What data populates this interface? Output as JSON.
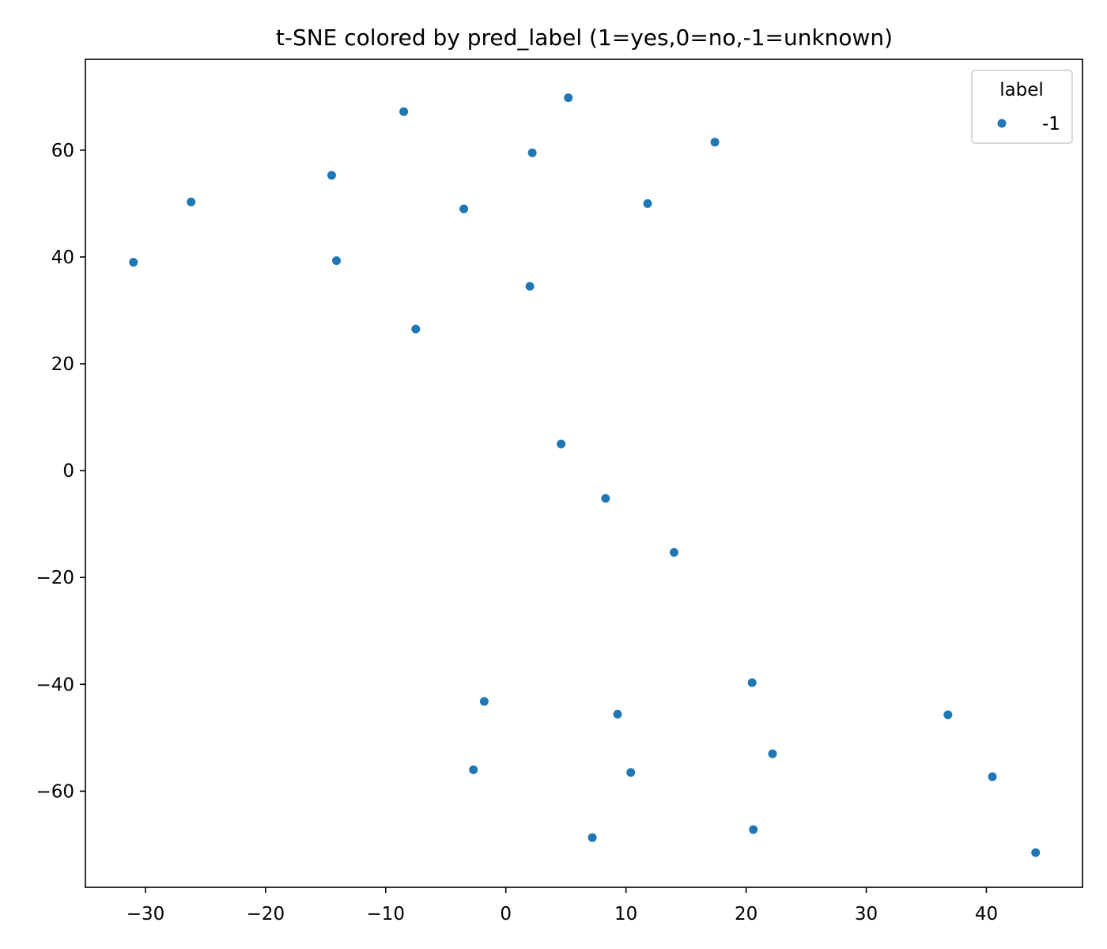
{
  "chart_data": {
    "type": "scatter",
    "title": "t-SNE colored by pred_label (1=yes,0=no,-1=unknown)",
    "xlabel": "",
    "ylabel": "",
    "xlim": [
      -35,
      48
    ],
    "ylim": [
      -78,
      77
    ],
    "x_ticks": [
      -30,
      -20,
      -10,
      0,
      10,
      20,
      30,
      40
    ],
    "x_tick_labels": [
      "−30",
      "−20",
      "−10",
      "0",
      "10",
      "20",
      "30",
      "40"
    ],
    "y_ticks": [
      -60,
      -40,
      -20,
      0,
      20,
      40,
      60
    ],
    "y_tick_labels": [
      "−60",
      "−40",
      "−20",
      "0",
      "20",
      "40",
      "60"
    ],
    "grid": false,
    "legend": {
      "title": "label",
      "placement": "top-right",
      "entries": [
        {
          "label": "-1",
          "color": "#1f77b4"
        }
      ]
    },
    "series": [
      {
        "name": "-1",
        "color": "#1f77b4",
        "points": [
          {
            "x": -31.0,
            "y": 39.0
          },
          {
            "x": -26.2,
            "y": 50.3
          },
          {
            "x": -14.5,
            "y": 55.3
          },
          {
            "x": -14.1,
            "y": 39.3
          },
          {
            "x": -8.5,
            "y": 67.2
          },
          {
            "x": -7.5,
            "y": 26.5
          },
          {
            "x": -3.5,
            "y": 49.0
          },
          {
            "x": 2.0,
            "y": 34.5
          },
          {
            "x": 2.2,
            "y": 59.5
          },
          {
            "x": 5.2,
            "y": 69.8
          },
          {
            "x": 11.8,
            "y": 50.0
          },
          {
            "x": 17.4,
            "y": 61.5
          },
          {
            "x": 4.6,
            "y": 5.0
          },
          {
            "x": 8.3,
            "y": -5.2
          },
          {
            "x": 14.0,
            "y": -15.3
          },
          {
            "x": -1.8,
            "y": -43.2
          },
          {
            "x": -2.7,
            "y": -56.0
          },
          {
            "x": 9.3,
            "y": -45.6
          },
          {
            "x": 10.4,
            "y": -56.5
          },
          {
            "x": 7.2,
            "y": -68.7
          },
          {
            "x": 20.5,
            "y": -39.7
          },
          {
            "x": 22.2,
            "y": -53.0
          },
          {
            "x": 20.6,
            "y": -67.2
          },
          {
            "x": 36.8,
            "y": -45.7
          },
          {
            "x": 40.5,
            "y": -57.3
          },
          {
            "x": 44.1,
            "y": -71.5
          }
        ]
      }
    ]
  }
}
